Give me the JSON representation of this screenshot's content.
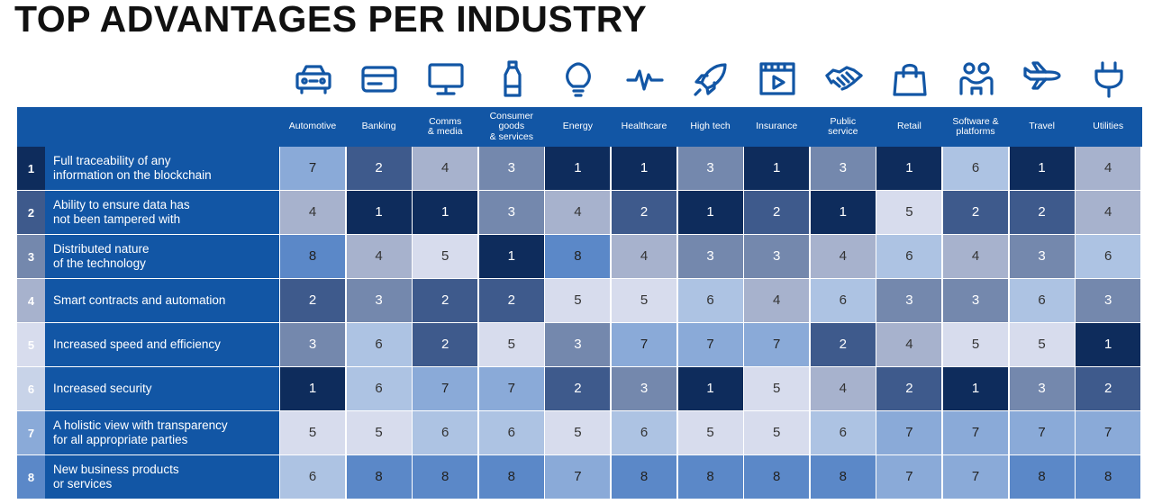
{
  "title": "TOP ADVANTAGES PER INDUSTRY",
  "colors": {
    "header_blue": "#1256a5",
    "rank_colors": {
      "1": "#0e2c5c",
      "2": "#3e5a8c",
      "3": "#7488ad",
      "4": "#a7b2cd",
      "5": "#d7dced",
      "6": "#adc3e3",
      "7": "#8aaad8",
      "8": "#5b88c8"
    },
    "row_number_colors": [
      "#0e2c5c",
      "#3e5a8c",
      "#7488ad",
      "#a7b2cd",
      "#d7dced",
      "#c8d3e8",
      "#8aaad8",
      "#5b88c8"
    ]
  },
  "icons": [
    "car-icon",
    "credit-card-icon",
    "monitor-icon",
    "bottle-icon",
    "lightbulb-icon",
    "heartbeat-icon",
    "rocket-icon",
    "video-player-icon",
    "handshake-icon",
    "shopping-bag-icon",
    "people-icon",
    "airplane-icon",
    "power-plug-icon"
  ],
  "chart_data": {
    "type": "heatmap",
    "title": "TOP ADVANTAGES PER INDUSTRY",
    "columns": [
      "Automotive",
      "Banking",
      "Comms\n& media",
      "Consumer\ngoods\n& services",
      "Energy",
      "Healthcare",
      "High tech",
      "Insurance",
      "Public\nservice",
      "Retail",
      "Software &\nplatforms",
      "Travel",
      "Utilities"
    ],
    "rows": [
      {
        "rank": "1",
        "label": "Full traceability of any\ninformation on the blockchain",
        "values": [
          7,
          2,
          4,
          3,
          1,
          1,
          3,
          1,
          3,
          1,
          6,
          1,
          4
        ]
      },
      {
        "rank": "2",
        "label": "Ability to ensure data has\nnot been tampered with",
        "values": [
          4,
          1,
          1,
          3,
          4,
          2,
          1,
          2,
          1,
          5,
          2,
          2,
          4
        ]
      },
      {
        "rank": "3",
        "label": "Distributed nature\nof the technology",
        "values": [
          8,
          4,
          5,
          1,
          8,
          4,
          3,
          3,
          4,
          6,
          4,
          3,
          6
        ]
      },
      {
        "rank": "4",
        "label": "Smart contracts and automation",
        "values": [
          2,
          3,
          2,
          2,
          5,
          5,
          6,
          4,
          6,
          3,
          3,
          6,
          3
        ]
      },
      {
        "rank": "5",
        "label": "Increased speed and efficiency",
        "values": [
          3,
          6,
          2,
          5,
          3,
          7,
          7,
          7,
          2,
          4,
          5,
          5,
          1
        ]
      },
      {
        "rank": "6",
        "label": "Increased security",
        "values": [
          1,
          6,
          7,
          7,
          2,
          3,
          1,
          5,
          4,
          2,
          1,
          3,
          2
        ]
      },
      {
        "rank": "7",
        "label": "A holistic view with transparency\nfor all appropriate parties",
        "values": [
          5,
          5,
          6,
          6,
          5,
          6,
          5,
          5,
          6,
          7,
          7,
          7,
          7
        ]
      },
      {
        "rank": "8",
        "label": "New business products\nor services",
        "values": [
          6,
          8,
          8,
          8,
          7,
          8,
          8,
          8,
          8,
          7,
          7,
          8,
          8
        ]
      }
    ]
  }
}
